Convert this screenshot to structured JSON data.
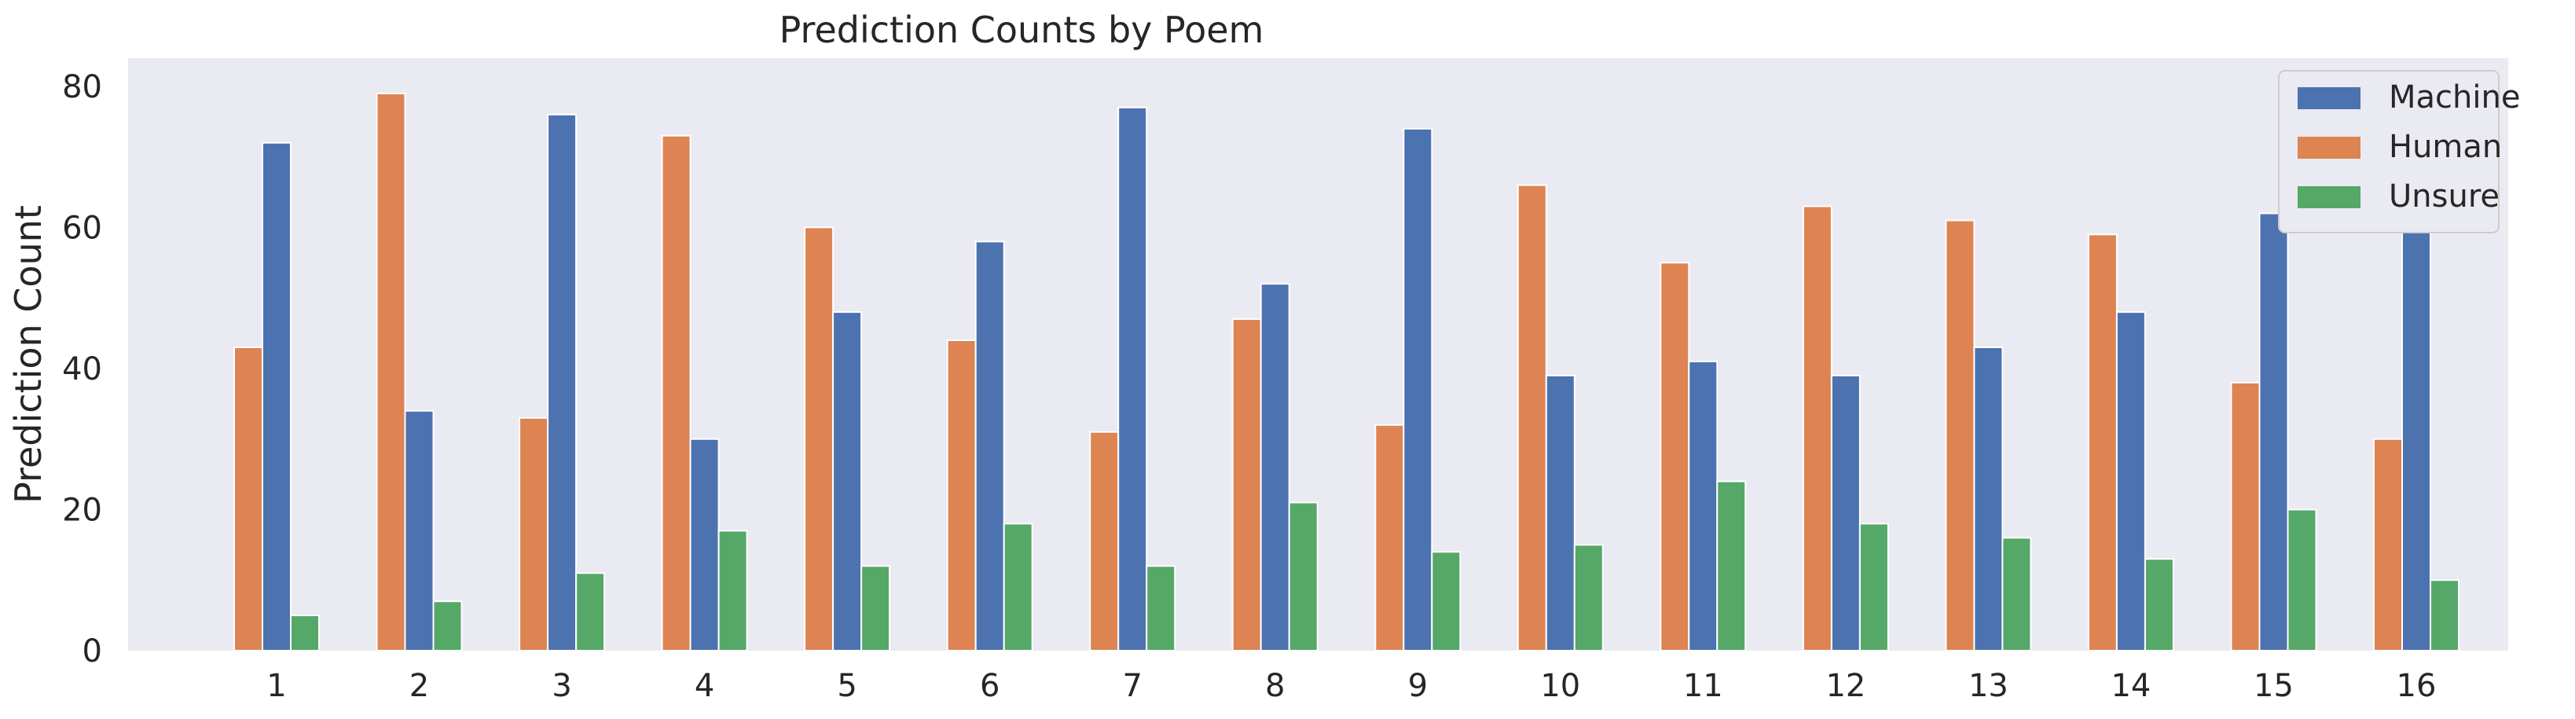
{
  "chart_data": {
    "type": "bar",
    "title": "Prediction Counts by Poem",
    "xlabel": "",
    "ylabel": "Prediction Count",
    "categories": [
      "1",
      "2",
      "3",
      "4",
      "5",
      "6",
      "7",
      "8",
      "9",
      "10",
      "11",
      "12",
      "13",
      "14",
      "15",
      "16"
    ],
    "series": [
      {
        "name": "Human",
        "color": "#dd8452",
        "values": [
          43,
          79,
          33,
          73,
          60,
          44,
          31,
          47,
          32,
          66,
          55,
          63,
          61,
          59,
          38,
          30
        ]
      },
      {
        "name": "Machine",
        "color": "#4c72b0",
        "values": [
          72,
          34,
          76,
          30,
          48,
          58,
          77,
          52,
          74,
          39,
          41,
          39,
          43,
          48,
          62,
          80
        ]
      },
      {
        "name": "Unsure",
        "color": "#55a868",
        "values": [
          5,
          7,
          11,
          17,
          12,
          18,
          12,
          21,
          14,
          15,
          24,
          18,
          16,
          13,
          20,
          10
        ]
      }
    ],
    "legend_order": [
      "Machine",
      "Human",
      "Unsure"
    ],
    "legend_position": "top-right",
    "ylim": [
      0,
      84
    ],
    "yticks": [
      0,
      20,
      40,
      60,
      80
    ],
    "grid": false,
    "background": "#eaeaf2"
  }
}
